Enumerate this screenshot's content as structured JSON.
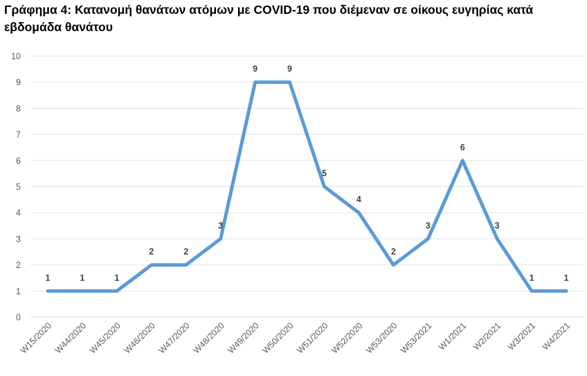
{
  "chart_data": {
    "type": "line",
    "title": "Γράφημα 4: Κατανομή θανάτων ατόμων με COVID-19 που διέμεναν σε οίκους ευγηρίας κατά εβδομάδα θανάτου",
    "xlabel": "",
    "ylabel": "",
    "categories": [
      "W15/2020",
      "W44/2020",
      "W45/2020",
      "W46/2020",
      "W47/2020",
      "W48/2020",
      "W49/2020",
      "W50/2020",
      "W51/2020",
      "W52/2020",
      "W53/2020",
      "W53/2021",
      "W1/2021",
      "W2/2021",
      "W3/2021",
      "W4/2021"
    ],
    "series": [
      {
        "values": [
          1,
          1,
          1,
          2,
          2,
          3,
          9,
          9,
          5,
          4,
          2,
          3,
          6,
          3,
          1,
          1
        ]
      }
    ],
    "ylim": [
      0,
      10
    ],
    "yticks": [
      0,
      1,
      2,
      3,
      4,
      5,
      6,
      7,
      8,
      9,
      10
    ],
    "grid": true,
    "legend": "none",
    "line_color": "#5b9bd5"
  }
}
